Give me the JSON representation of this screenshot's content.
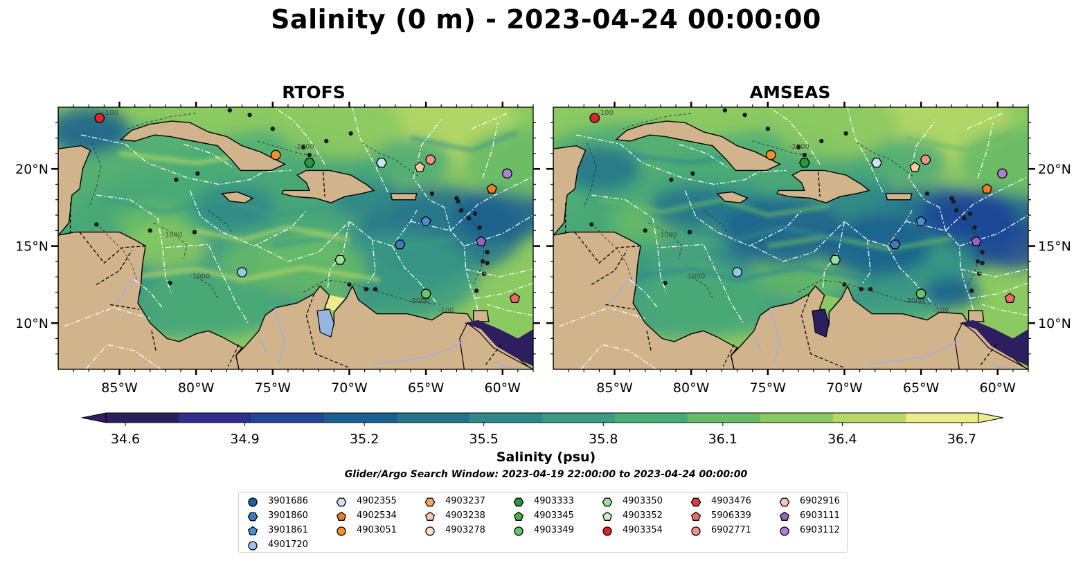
{
  "title": "Salinity (0 m) - 2023-04-24 00:00:00",
  "panels": [
    {
      "id": "rtofs",
      "title": "RTOFS"
    },
    {
      "id": "amseas",
      "title": "AMSEAS"
    }
  ],
  "map": {
    "lon_range": [
      -89.0,
      -58.0
    ],
    "lat_range": [
      7.0,
      24.0
    ],
    "lon_ticks": [
      -85,
      -80,
      -75,
      -70,
      -65,
      -60
    ],
    "lon_tick_labels": [
      "85°W",
      "80°W",
      "75°W",
      "70°W",
      "65°W",
      "60°W"
    ],
    "lat_ticks": [
      10,
      15,
      20
    ],
    "lat_tick_labels": [
      "10°N",
      "15°N",
      "20°N"
    ],
    "contour_labels": [
      "-100",
      "-1000",
      "-2000"
    ],
    "colors": {
      "land": "#d2b48c",
      "ocean_masked": "#96b5e0",
      "boundary": "#000000",
      "eez": "#ffffff",
      "river": "#9fb4d8"
    }
  },
  "colorbar": {
    "label": "Salinity (psu)",
    "min": 34.6,
    "max": 36.7,
    "ticks": [
      "34.6",
      "34.9",
      "35.2",
      "35.5",
      "35.8",
      "36.1",
      "36.4",
      "36.7"
    ],
    "colormap": [
      "#2c1e5f",
      "#2d2e8e",
      "#1f4796",
      "#1a5f8f",
      "#24738c",
      "#2f878a",
      "#3a9a83",
      "#4bab75",
      "#67bb66",
      "#8bc961",
      "#b6d867",
      "#ecec8d"
    ],
    "extend": "both"
  },
  "search_window": "Glider/Argo Search Window: 2023-04-19 22:00:00 to 2023-04-24 00:00:00",
  "floats": [
    {
      "id": "3901686",
      "marker": "circle",
      "color": "#1f5f9f",
      "lon": null,
      "lat": null
    },
    {
      "id": "3901860",
      "marker": "hexagon",
      "color": "#3a7cc4",
      "lon": -66.7,
      "lat": 15.1
    },
    {
      "id": "3901861",
      "marker": "pentagon",
      "color": "#4a8fd6",
      "lon": -65.0,
      "lat": 16.6
    },
    {
      "id": "4901720",
      "marker": "circle",
      "color": "#9ac4ee",
      "lon": -77.0,
      "lat": 13.3
    },
    {
      "id": "4902355",
      "marker": "hexagon",
      "color": "#cfe3f7",
      "lon": -67.9,
      "lat": 20.4
    },
    {
      "id": "4902534",
      "marker": "pentagon",
      "color": "#f07f16",
      "lon": -60.7,
      "lat": 18.7
    },
    {
      "id": "4903051",
      "marker": "circle",
      "color": "#f5922a",
      "lon": -74.8,
      "lat": 20.9
    },
    {
      "id": "4903237",
      "marker": "hexagon",
      "color": "#f6a86a",
      "lon": null,
      "lat": null
    },
    {
      "id": "4903238",
      "marker": "pentagon",
      "color": "#fbc9a1",
      "lon": -65.4,
      "lat": 20.1
    },
    {
      "id": "4903278",
      "marker": "circle",
      "color": "#fde0cb",
      "lon": null,
      "lat": null
    },
    {
      "id": "4903333",
      "marker": "hexagon",
      "color": "#259a35",
      "lon": -72.6,
      "lat": 20.4
    },
    {
      "id": "4903345",
      "marker": "pentagon",
      "color": "#4aae4a",
      "lon": null,
      "lat": null
    },
    {
      "id": "4903349",
      "marker": "circle",
      "color": "#6ac46a",
      "lon": -65.0,
      "lat": 11.9
    },
    {
      "id": "4903350",
      "marker": "hexagon",
      "color": "#9ee09a",
      "lon": -70.6,
      "lat": 14.1
    },
    {
      "id": "4903352",
      "marker": "pentagon",
      "color": "#c9efc2",
      "lon": null,
      "lat": null
    },
    {
      "id": "4903354",
      "marker": "circle",
      "color": "#d6272b",
      "lon": -86.3,
      "lat": 23.3
    },
    {
      "id": "4903476",
      "marker": "hexagon",
      "color": "#d83c3c",
      "lon": null,
      "lat": null
    },
    {
      "id": "5906339",
      "marker": "pentagon",
      "color": "#ee6a64",
      "lon": -59.2,
      "lat": 11.6
    },
    {
      "id": "6902771",
      "marker": "circle",
      "color": "#f2908c",
      "lon": -64.7,
      "lat": 20.6
    },
    {
      "id": "6902916",
      "marker": "hexagon",
      "color": "#f9c2bd",
      "lon": null,
      "lat": null
    },
    {
      "id": "6903111",
      "marker": "pentagon",
      "color": "#9a61c2",
      "lon": -61.4,
      "lat": 15.3
    },
    {
      "id": "6903112",
      "marker": "circle",
      "color": "#b07fd4",
      "lon": -59.7,
      "lat": 19.7
    }
  ]
}
